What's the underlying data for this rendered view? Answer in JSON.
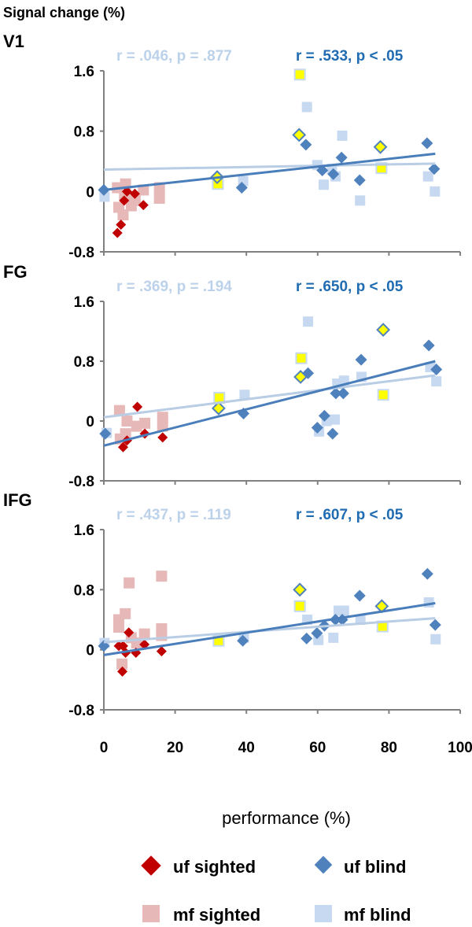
{
  "chart_data": {
    "type": "scatter",
    "ylabel": "Signal change (%)",
    "xlabel": "performance (%)",
    "xlim": [
      0,
      100
    ],
    "ylim": [
      -0.8,
      1.6
    ],
    "xticks": [
      "0",
      "20",
      "40",
      "60",
      "80",
      "100"
    ],
    "yticks": [
      "1.6",
      "0.8",
      "0",
      "-0.8"
    ],
    "legend": {
      "uf_sighted": "uf sighted",
      "uf_blind": "uf blind",
      "mf_sighted": "mf sighted",
      "mf_blind": "mf blind"
    },
    "colors": {
      "uf_sighted": "#c00000",
      "uf_blind": "#4f81bd",
      "mf_sighted": "#e6b9b8",
      "mf_blind": "#c6d9f1",
      "highlight": "#ffff00",
      "trend_uf_blind": "#4a7ebb",
      "trend_mf_blind": "#b9cde5"
    },
    "panels": [
      {
        "name": "V1",
        "stat_mf_blind": "r = .046, p = .877",
        "stat_uf_blind": "r = .533, p < .05",
        "uf_sighted": [
          [
            3.8,
            -0.55
          ],
          [
            4.8,
            -0.44
          ],
          [
            6.5,
            0.0
          ],
          [
            8.7,
            -0.03
          ],
          [
            11.1,
            -0.18
          ],
          [
            5.7,
            -0.12
          ]
        ],
        "mf_sighted": [
          [
            6.1,
            0.1
          ],
          [
            3.8,
            0.05
          ],
          [
            11.1,
            0.02
          ],
          [
            15.6,
            0.05
          ],
          [
            15.6,
            -0.09
          ],
          [
            4.2,
            -0.21
          ],
          [
            5.4,
            -0.31
          ],
          [
            7.7,
            -0.19
          ],
          [
            8.8,
            -0.12
          ],
          [
            5.8,
            -0.05
          ]
        ],
        "uf_blind": [
          [
            0,
            0.02
          ],
          [
            31.8,
            0.19,
            1
          ],
          [
            38.7,
            0.05
          ],
          [
            54.8,
            0.75,
            1
          ],
          [
            56.7,
            0.62
          ],
          [
            61.3,
            0.28
          ],
          [
            64.4,
            0.23
          ],
          [
            66.7,
            0.45
          ],
          [
            71.8,
            0.15
          ],
          [
            77.6,
            0.59,
            1
          ],
          [
            90.7,
            0.64
          ],
          [
            92.7,
            0.3
          ]
        ],
        "mf_blind": [
          [
            0.2,
            -0.07
          ],
          [
            32,
            0.1,
            1
          ],
          [
            39.1,
            0.14
          ],
          [
            55,
            1.55,
            1
          ],
          [
            57,
            1.12
          ],
          [
            59.9,
            0.35
          ],
          [
            61.7,
            0.09
          ],
          [
            64,
            0.3
          ],
          [
            65,
            0.2
          ],
          [
            66.9,
            0.74
          ],
          [
            71.9,
            -0.12
          ],
          [
            77.9,
            0.31,
            1
          ],
          [
            91,
            0.2
          ],
          [
            92.9,
            0.0
          ]
        ],
        "trend_uf_blind": [
          [
            0,
            0.02
          ],
          [
            93,
            0.5
          ]
        ],
        "trend_mf_blind": [
          [
            0,
            0.29
          ],
          [
            93,
            0.37
          ]
        ]
      },
      {
        "name": "FG",
        "stat_mf_blind": "r = .369, p = .194",
        "stat_uf_blind": "r = .650, p < .05",
        "uf_sighted": [
          [
            5.4,
            -0.35
          ],
          [
            9.4,
            0.19
          ],
          [
            11.5,
            -0.17
          ],
          [
            16.5,
            -0.22
          ],
          [
            6.5,
            -0.26
          ]
        ],
        "mf_sighted": [
          [
            4.4,
            0.14
          ],
          [
            6.5,
            0.0
          ],
          [
            9.2,
            -0.07
          ],
          [
            11.5,
            -0.03
          ],
          [
            16.5,
            0.05
          ],
          [
            16.5,
            -0.07
          ],
          [
            6.1,
            -0.17
          ],
          [
            4.6,
            -0.24
          ]
        ],
        "uf_blind": [
          [
            0.4,
            -0.17
          ],
          [
            32.2,
            0.17,
            1
          ],
          [
            39.2,
            0.1
          ],
          [
            55.2,
            0.59,
            1
          ],
          [
            57.3,
            0.64
          ],
          [
            59.9,
            -0.09
          ],
          [
            61.9,
            0.07
          ],
          [
            64.2,
            -0.17
          ],
          [
            65.1,
            0.37
          ],
          [
            67.2,
            0.37
          ],
          [
            72.2,
            0.82
          ],
          [
            78.4,
            1.22,
            1
          ],
          [
            91.2,
            1.01
          ],
          [
            93.3,
            0.69
          ]
        ],
        "mf_blind": [
          [
            0.8,
            -0.16
          ],
          [
            32.4,
            0.31,
            1
          ],
          [
            39.5,
            0.35
          ],
          [
            55.4,
            0.84,
            1
          ],
          [
            57.3,
            1.33
          ],
          [
            60.4,
            -0.14
          ],
          [
            62.5,
            0.0
          ],
          [
            64.8,
            0.02
          ],
          [
            65.5,
            0.5
          ],
          [
            67.4,
            0.54
          ],
          [
            72.3,
            0.59
          ],
          [
            78.4,
            0.35,
            1
          ],
          [
            91.6,
            0.72
          ],
          [
            93.3,
            0.53
          ]
        ],
        "trend_uf_blind": [
          [
            0,
            -0.33
          ],
          [
            93,
            0.8
          ]
        ],
        "trend_mf_blind": [
          [
            0,
            0.05
          ],
          [
            93,
            0.61
          ]
        ]
      },
      {
        "name": "IFG",
        "stat_mf_blind": "r = .437, p = .119",
        "stat_uf_blind": "r = .607, p < .05",
        "uf_sighted": [
          [
            5.2,
            -0.29
          ],
          [
            7,
            0.23
          ],
          [
            4.2,
            0.05
          ],
          [
            6.1,
            -0.04
          ],
          [
            9,
            -0.04
          ],
          [
            11.4,
            0.07
          ],
          [
            16.2,
            -0.02
          ],
          [
            5.4,
            0.05
          ]
        ],
        "mf_sighted": [
          [
            7.1,
            0.89
          ],
          [
            16.2,
            0.98
          ],
          [
            6,
            0.48
          ],
          [
            4.2,
            0.4
          ],
          [
            4.2,
            0.3
          ],
          [
            16.2,
            0.28
          ],
          [
            16.2,
            0.19
          ],
          [
            11.4,
            0.21
          ],
          [
            7.7,
            0.16
          ],
          [
            5.1,
            -0.19
          ],
          [
            9.2,
            0.09
          ]
        ],
        "uf_blind": [
          [
            0,
            0.05
          ],
          [
            39,
            0.12
          ],
          [
            55,
            0.8,
            1
          ],
          [
            56.9,
            0.15
          ],
          [
            59.8,
            0.22
          ],
          [
            61.9,
            0.32
          ],
          [
            65,
            0.4
          ],
          [
            66.9,
            0.4
          ],
          [
            71.8,
            0.72
          ],
          [
            78,
            0.58,
            1
          ],
          [
            90.8,
            1.01
          ],
          [
            93,
            0.33
          ]
        ],
        "mf_blind": [
          [
            0.2,
            0.09
          ],
          [
            32.2,
            0.12,
            1
          ],
          [
            39.3,
            0.16
          ],
          [
            55,
            0.58,
            1
          ],
          [
            57.1,
            0.4
          ],
          [
            60.2,
            0.13
          ],
          [
            64.4,
            0.16
          ],
          [
            65.9,
            0.52
          ],
          [
            67.4,
            0.52
          ],
          [
            72,
            0.4
          ],
          [
            78.2,
            0.31,
            1
          ],
          [
            91.2,
            0.63
          ],
          [
            93.1,
            0.14
          ]
        ],
        "trend_uf_blind": [
          [
            0,
            -0.07
          ],
          [
            93,
            0.62
          ]
        ],
        "trend_mf_blind": [
          [
            0,
            0.1
          ],
          [
            93,
            0.42
          ]
        ]
      }
    ]
  }
}
